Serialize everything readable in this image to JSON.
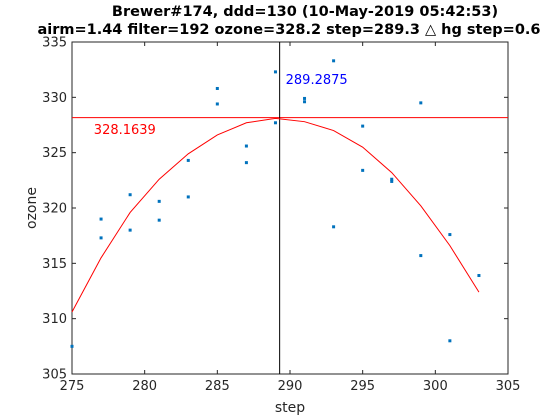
{
  "chart_data": {
    "type": "scatter",
    "title": "Brewer#174, ddd=130 (10-May-2019 05:42:53)",
    "subtitle": "airm=1.44  filter=192 ozone=328.2  step=289.3 △ hg step=0.6",
    "xlabel": "step",
    "ylabel": "ozone",
    "xlim": [
      275,
      305
    ],
    "ylim": [
      305,
      335
    ],
    "xticks": [
      "275",
      "280",
      "285",
      "290",
      "295",
      "300",
      "305"
    ],
    "yticks": [
      "305",
      "310",
      "315",
      "320",
      "325",
      "330",
      "335"
    ],
    "grid": false,
    "series": [
      {
        "kind": "scatter",
        "color": "#0072BD",
        "points": [
          [
            275,
            307.5
          ],
          [
            277,
            319.0
          ],
          [
            277,
            317.3
          ],
          [
            279,
            321.2
          ],
          [
            279,
            318.0
          ],
          [
            281,
            320.6
          ],
          [
            281,
            318.9
          ],
          [
            283,
            324.3
          ],
          [
            283,
            321.0
          ],
          [
            285,
            330.8
          ],
          [
            285,
            329.4
          ],
          [
            287,
            325.6
          ],
          [
            287,
            324.1
          ],
          [
            289,
            332.3
          ],
          [
            289,
            327.7
          ],
          [
            291,
            329.9
          ],
          [
            291,
            329.6
          ],
          [
            293,
            333.3
          ],
          [
            293,
            318.3
          ],
          [
            295,
            327.4
          ],
          [
            295,
            323.4
          ],
          [
            297,
            322.6
          ],
          [
            297,
            322.4
          ],
          [
            299,
            329.5
          ],
          [
            299,
            315.7
          ],
          [
            301,
            317.6
          ],
          [
            301,
            308.0
          ],
          [
            303,
            313.9
          ]
        ]
      },
      {
        "kind": "line",
        "color": "#FF0000",
        "points": [
          [
            275,
            310.6
          ],
          [
            277,
            315.5
          ],
          [
            279,
            319.6
          ],
          [
            281,
            322.6
          ],
          [
            283,
            324.9
          ],
          [
            285,
            326.6
          ],
          [
            287,
            327.7
          ],
          [
            289,
            328.1
          ],
          [
            291,
            327.8
          ],
          [
            293,
            327.0
          ],
          [
            295,
            325.5
          ],
          [
            297,
            323.2
          ],
          [
            299,
            320.2
          ],
          [
            301,
            316.6
          ],
          [
            303,
            312.4
          ]
        ]
      }
    ],
    "hline": {
      "y": 328.1639,
      "color": "#FF0000"
    },
    "vline": {
      "x": 289.2875,
      "color": "#000000"
    },
    "annotations": [
      {
        "text": "289.2875",
        "x": 289.7,
        "y": 331.6,
        "color": "#0000FF"
      },
      {
        "text": "328.1639",
        "x": 276.5,
        "y": 327.1,
        "color": "#FF0000"
      }
    ]
  }
}
